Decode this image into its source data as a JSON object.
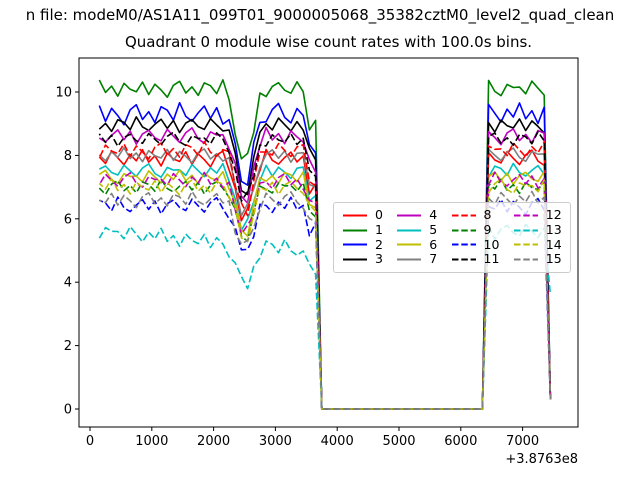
{
  "figure": {
    "file_line": "n file: modeM0/AS1A11_099T01_9000005068_35382cztM0_level2_quad_clean",
    "title": "Quadrant 0 module wise count rates with 100.0s bins."
  },
  "chart_data": {
    "type": "line",
    "title": "Quadrant 0 module wise count rates with 100.0s bins.",
    "xlabel": "",
    "ylabel": "",
    "x_offset_label": "+3.8763e8",
    "x_ticks": [
      0,
      1000,
      2000,
      3000,
      4000,
      5000,
      6000,
      7000
    ],
    "y_ticks": [
      0,
      2,
      4,
      6,
      8,
      10
    ],
    "xlim": [
      -178,
      7896
    ],
    "ylim": [
      -0.57,
      11.07
    ],
    "grid": false,
    "bin_seconds": 100,
    "x_start": 150,
    "zero_interval": [
      3750,
      6350
    ],
    "right_segment": [
      6450,
      7350
    ],
    "x_last": 7450,
    "legend": {
      "columns": 4,
      "rows": 4,
      "framealpha": 0.8,
      "location": "center right"
    },
    "dips": [
      {
        "center": 2500,
        "halfwidth": 280,
        "depth_frac": 0.27
      },
      {
        "center": 3600,
        "halfwidth": 160,
        "depth_frac": 0.16
      }
    ],
    "noise_template": [
      0.18,
      -0.52,
      0.81,
      0.07,
      -0.66,
      0.42,
      -0.23,
      0.93,
      -0.38,
      0.29,
      -0.77,
      0.58,
      -0.05,
      -0.31,
      0.71,
      -0.6,
      0.49,
      -0.12,
      -0.88,
      0.37,
      0.79,
      -0.44,
      0.21,
      -0.69,
      0.62,
      0.33,
      -0.5,
      0.95,
      -0.18,
      -0.58,
      0.11,
      0.68,
      -0.35,
      0.54,
      -0.82,
      0.26,
      0.64,
      -0.15,
      -0.46,
      0.74,
      0.03,
      -0.63,
      0.39,
      0.89,
      -0.27,
      -0.72,
      0.47,
      0.14
    ],
    "series": [
      {
        "label": "0",
        "color": "#ff0000",
        "linestyle": "solid",
        "mean_level": 7.9,
        "noise_amp": 0.3,
        "phase": 0,
        "trend_per_1000": 0,
        "last_value": 0.3
      },
      {
        "label": "1",
        "color": "#008000",
        "linestyle": "solid",
        "mean_level": 10.1,
        "noise_amp": 0.3,
        "phase": 7,
        "trend_per_1000": 0,
        "last_value": 0.35
      },
      {
        "label": "2",
        "color": "#0000ff",
        "linestyle": "solid",
        "mean_level": 9.3,
        "noise_amp": 0.38,
        "phase": 14,
        "trend_per_1000": 0,
        "last_value": 0.3
      },
      {
        "label": "3",
        "color": "#000000",
        "linestyle": "solid",
        "mean_level": 8.95,
        "noise_amp": 0.28,
        "phase": 21,
        "trend_per_1000": 0,
        "last_value": 0.3
      },
      {
        "label": "4",
        "color": "#bf00bf",
        "linestyle": "solid",
        "mean_level": 8.6,
        "noise_amp": 0.3,
        "phase": 28,
        "trend_per_1000": 0,
        "last_value": 0.3
      },
      {
        "label": "5",
        "color": "#00bfbf",
        "linestyle": "solid",
        "mean_level": 7.5,
        "noise_amp": 0.26,
        "phase": 35,
        "trend_per_1000": 0,
        "last_value": 0.3
      },
      {
        "label": "6",
        "color": "#bfbf00",
        "linestyle": "solid",
        "mean_level": 7.3,
        "noise_amp": 0.26,
        "phase": 42,
        "trend_per_1000": 0,
        "last_value": 0.3
      },
      {
        "label": "7",
        "color": "#808080",
        "linestyle": "solid",
        "mean_level": 8.0,
        "noise_amp": 0.26,
        "phase": 3,
        "trend_per_1000": 0,
        "last_value": 0.3
      },
      {
        "label": "8",
        "color": "#ff0000",
        "linestyle": "dashed",
        "mean_level": 8.15,
        "noise_amp": 0.3,
        "phase": 10,
        "trend_per_1000": 0,
        "last_value": 0.3
      },
      {
        "label": "9",
        "color": "#008000",
        "linestyle": "dashed",
        "mean_level": 7.0,
        "noise_amp": 0.26,
        "phase": 17,
        "trend_per_1000": 0,
        "last_value": 0.3
      },
      {
        "label": "10",
        "color": "#0000ff",
        "linestyle": "dashed",
        "mean_level": 6.4,
        "noise_amp": 0.3,
        "phase": 24,
        "trend_per_1000": 0,
        "last_value": 0.3
      },
      {
        "label": "11",
        "color": "#000000",
        "linestyle": "dashed",
        "mean_level": 8.5,
        "noise_amp": 0.26,
        "phase": 31,
        "trend_per_1000": 0,
        "last_value": 0.3
      },
      {
        "label": "12",
        "color": "#bf00bf",
        "linestyle": "dashed",
        "mean_level": 7.2,
        "noise_amp": 0.28,
        "phase": 38,
        "trend_per_1000": 0,
        "last_value": 0.3
      },
      {
        "label": "13",
        "color": "#00bfbf",
        "linestyle": "dashed",
        "mean_level": 5.6,
        "noise_amp": 0.3,
        "phase": 45,
        "trend_per_1000": -0.18,
        "last_value": 3.6
      },
      {
        "label": "14",
        "color": "#bfbf00",
        "linestyle": "dashed",
        "mean_level": 7.0,
        "noise_amp": 0.28,
        "phase": 5,
        "trend_per_1000": 0,
        "last_value": 0.3
      },
      {
        "label": "15",
        "color": "#808080",
        "linestyle": "dashed",
        "mean_level": 6.6,
        "noise_amp": 0.28,
        "phase": 12,
        "trend_per_1000": 0,
        "last_value": 0.3
      }
    ]
  },
  "colors": {
    "axis": "#000000",
    "text": "#000000",
    "legend_border": "#cccccc",
    "background": "#ffffff"
  }
}
